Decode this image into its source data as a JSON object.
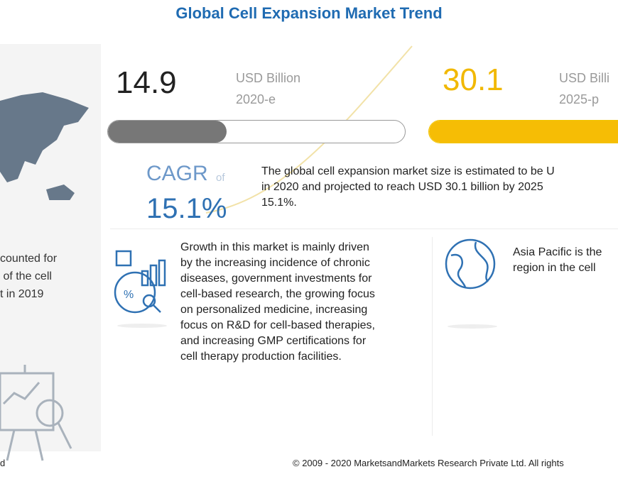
{
  "title": "Global Cell Expansion Market Trend",
  "left": {
    "text": "counted for\n of the cell\nt in 2019",
    "icons": [
      "world-map-icon",
      "chart-presentation-icon"
    ]
  },
  "stat2020": {
    "value": "14.9",
    "unit": "USD Billion",
    "year": "2020-e",
    "progress": 0.4,
    "color": "#777777"
  },
  "stat2025": {
    "value": "30.1",
    "unit": "USD Billi",
    "year": "2025-p",
    "progress": 0.99,
    "color": "#f6bd05"
  },
  "cagr": {
    "label": "CAGR",
    "of": "of",
    "value": "15.1%"
  },
  "summary": "The global cell expansion market size is estimated to be U\nin 2020 and projected to reach USD 30.1 billion by 2025\n15.1%.",
  "growth": "Growth in this market is mainly driven\nby the increasing incidence of chronic\ndiseases, government investments for\ncell-based research, the growing focus\non personalized medicine, increasing\nfocus on R&D for cell-based therapies,\nand increasing GMP certifications for\ncell therapy production facilities.",
  "asia": "Asia Pacific is the\nregion in the cell",
  "footer": {
    "left": "d",
    "right": "© 2009 - 2020 MarketsandMarkets Research Private Ltd. All rights"
  }
}
